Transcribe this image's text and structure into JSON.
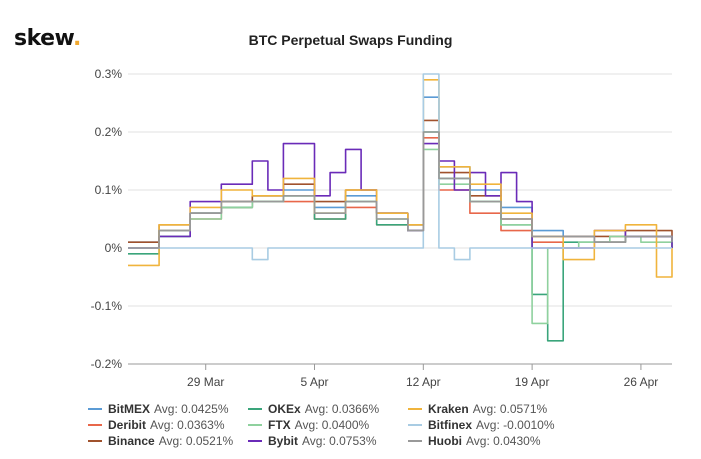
{
  "brand": {
    "name": "skew",
    "dot": "."
  },
  "chart_data": {
    "type": "line",
    "title": "BTC Perpetual Swaps Funding",
    "xlabel": "",
    "ylabel": "",
    "x_start": "2020-03-24",
    "x_end": "2020-04-28",
    "x_ticks": [
      {
        "label": "29 Mar",
        "date": "2020-03-29"
      },
      {
        "label": "5 Apr",
        "date": "2020-04-05"
      },
      {
        "label": "12 Apr",
        "date": "2020-04-12"
      },
      {
        "label": "19 Apr",
        "date": "2020-04-19"
      },
      {
        "label": "26 Apr",
        "date": "2020-04-26"
      }
    ],
    "ylim": [
      -0.2,
      0.3
    ],
    "y_ticks": [
      {
        "label": "0.3%",
        "value": 0.3
      },
      {
        "label": "0.2%",
        "value": 0.2
      },
      {
        "label": "0.1%",
        "value": 0.1
      },
      {
        "label": "0%",
        "value": 0
      },
      {
        "label": "-0.1%",
        "value": -0.1
      },
      {
        "label": "-0.2%",
        "value": -0.2
      }
    ],
    "grid": true,
    "legend_position": "bottom",
    "series": [
      {
        "name": "BitMEX",
        "avg_label": "Avg: 0.0425%",
        "color": "#5b9bd5",
        "points": [
          [
            "2020-03-24",
            0.01
          ],
          [
            "2020-03-26",
            0.03
          ],
          [
            "2020-03-28",
            0.06
          ],
          [
            "2020-03-30",
            0.08
          ],
          [
            "2020-04-01",
            0.09
          ],
          [
            "2020-04-03",
            0.1
          ],
          [
            "2020-04-05",
            0.07
          ],
          [
            "2020-04-07",
            0.09
          ],
          [
            "2020-04-09",
            0.06
          ],
          [
            "2020-04-11",
            0.04
          ],
          [
            "2020-04-12",
            0.26
          ],
          [
            "2020-04-13",
            0.14
          ],
          [
            "2020-04-15",
            0.1
          ],
          [
            "2020-04-17",
            0.07
          ],
          [
            "2020-04-19",
            0.03
          ],
          [
            "2020-04-21",
            0.02
          ],
          [
            "2020-04-23",
            0.01
          ],
          [
            "2020-04-25",
            0.02
          ],
          [
            "2020-04-28",
            0.01
          ]
        ]
      },
      {
        "name": "Deribit",
        "avg_label": "Avg: 0.0363%",
        "color": "#e8674a",
        "points": [
          [
            "2020-03-24",
            0.0
          ],
          [
            "2020-03-26",
            0.03
          ],
          [
            "2020-03-28",
            0.05
          ],
          [
            "2020-03-30",
            0.07
          ],
          [
            "2020-04-01",
            0.08
          ],
          [
            "2020-04-03",
            0.08
          ],
          [
            "2020-04-05",
            0.05
          ],
          [
            "2020-04-07",
            0.07
          ],
          [
            "2020-04-09",
            0.04
          ],
          [
            "2020-04-11",
            0.03
          ],
          [
            "2020-04-12",
            0.19
          ],
          [
            "2020-04-13",
            0.1
          ],
          [
            "2020-04-15",
            0.06
          ],
          [
            "2020-04-17",
            0.03
          ],
          [
            "2020-04-19",
            0.01
          ],
          [
            "2020-04-21",
            0.0
          ],
          [
            "2020-04-23",
            0.01
          ],
          [
            "2020-04-25",
            0.02
          ],
          [
            "2020-04-28",
            0.0
          ]
        ]
      },
      {
        "name": "Binance",
        "avg_label": "Avg: 0.0521%",
        "color": "#a0522d",
        "points": [
          [
            "2020-03-24",
            0.01
          ],
          [
            "2020-03-26",
            0.04
          ],
          [
            "2020-03-28",
            0.06
          ],
          [
            "2020-03-30",
            0.08
          ],
          [
            "2020-04-01",
            0.09
          ],
          [
            "2020-04-03",
            0.11
          ],
          [
            "2020-04-05",
            0.08
          ],
          [
            "2020-04-07",
            0.1
          ],
          [
            "2020-04-09",
            0.06
          ],
          [
            "2020-04-11",
            0.04
          ],
          [
            "2020-04-12",
            0.22
          ],
          [
            "2020-04-13",
            0.13
          ],
          [
            "2020-04-15",
            0.09
          ],
          [
            "2020-04-17",
            0.05
          ],
          [
            "2020-04-19",
            0.02
          ],
          [
            "2020-04-21",
            0.02
          ],
          [
            "2020-04-23",
            0.02
          ],
          [
            "2020-04-25",
            0.03
          ],
          [
            "2020-04-28",
            0.01
          ]
        ]
      },
      {
        "name": "OKEx",
        "avg_label": "Avg: 0.0366%",
        "color": "#3aa57b",
        "points": [
          [
            "2020-03-24",
            -0.01
          ],
          [
            "2020-03-26",
            0.02
          ],
          [
            "2020-03-28",
            0.06
          ],
          [
            "2020-03-30",
            0.07
          ],
          [
            "2020-04-01",
            0.08
          ],
          [
            "2020-04-03",
            0.09
          ],
          [
            "2020-04-05",
            0.05
          ],
          [
            "2020-04-07",
            0.08
          ],
          [
            "2020-04-09",
            0.04
          ],
          [
            "2020-04-11",
            0.03
          ],
          [
            "2020-04-12",
            0.2
          ],
          [
            "2020-04-13",
            0.12
          ],
          [
            "2020-04-15",
            0.08
          ],
          [
            "2020-04-17",
            0.04
          ],
          [
            "2020-04-19",
            -0.08
          ],
          [
            "2020-04-20",
            -0.16
          ],
          [
            "2020-04-21",
            0.01
          ],
          [
            "2020-04-23",
            0.01
          ],
          [
            "2020-04-25",
            0.02
          ],
          [
            "2020-04-28",
            0.0
          ]
        ]
      },
      {
        "name": "FTX",
        "avg_label": "Avg: 0.0400%",
        "color": "#8fd19e",
        "points": [
          [
            "2020-03-24",
            0.0
          ],
          [
            "2020-03-26",
            0.03
          ],
          [
            "2020-03-28",
            0.05
          ],
          [
            "2020-03-30",
            0.07
          ],
          [
            "2020-04-01",
            0.08
          ],
          [
            "2020-04-03",
            0.09
          ],
          [
            "2020-04-05",
            0.06
          ],
          [
            "2020-04-07",
            0.08
          ],
          [
            "2020-04-09",
            0.05
          ],
          [
            "2020-04-11",
            0.03
          ],
          [
            "2020-04-12",
            0.17
          ],
          [
            "2020-04-13",
            0.11
          ],
          [
            "2020-04-15",
            0.08
          ],
          [
            "2020-04-17",
            0.04
          ],
          [
            "2020-04-19",
            -0.13
          ],
          [
            "2020-04-20",
            0.0
          ],
          [
            "2020-04-22",
            0.01
          ],
          [
            "2020-04-24",
            0.02
          ],
          [
            "2020-04-26",
            0.01
          ],
          [
            "2020-04-28",
            0.0
          ]
        ]
      },
      {
        "name": "Bybit",
        "avg_label": "Avg: 0.0753%",
        "color": "#6a2bb8",
        "points": [
          [
            "2020-03-24",
            0.0
          ],
          [
            "2020-03-26",
            0.02
          ],
          [
            "2020-03-28",
            0.08
          ],
          [
            "2020-03-30",
            0.11
          ],
          [
            "2020-04-01",
            0.15
          ],
          [
            "2020-04-02",
            0.1
          ],
          [
            "2020-04-03",
            0.18
          ],
          [
            "2020-04-05",
            0.09
          ],
          [
            "2020-04-06",
            0.13
          ],
          [
            "2020-04-07",
            0.17
          ],
          [
            "2020-04-08",
            0.1
          ],
          [
            "2020-04-09",
            0.06
          ],
          [
            "2020-04-11",
            0.03
          ],
          [
            "2020-04-12",
            0.18
          ],
          [
            "2020-04-13",
            0.15
          ],
          [
            "2020-04-14",
            0.1
          ],
          [
            "2020-04-15",
            0.13
          ],
          [
            "2020-04-16",
            0.09
          ],
          [
            "2020-04-17",
            0.13
          ],
          [
            "2020-04-18",
            0.08
          ],
          [
            "2020-04-19",
            0.0
          ],
          [
            "2020-04-21",
            0.0
          ],
          [
            "2020-04-23",
            0.03
          ],
          [
            "2020-04-25",
            0.02
          ],
          [
            "2020-04-28",
            0.0
          ]
        ]
      },
      {
        "name": "Kraken",
        "avg_label": "Avg: 0.0571%",
        "color": "#f0b43c",
        "points": [
          [
            "2020-03-24",
            -0.03
          ],
          [
            "2020-03-26",
            0.04
          ],
          [
            "2020-03-28",
            0.07
          ],
          [
            "2020-03-30",
            0.1
          ],
          [
            "2020-04-01",
            0.09
          ],
          [
            "2020-04-03",
            0.12
          ],
          [
            "2020-04-05",
            0.06
          ],
          [
            "2020-04-07",
            0.1
          ],
          [
            "2020-04-09",
            0.06
          ],
          [
            "2020-04-11",
            0.04
          ],
          [
            "2020-04-12",
            0.29
          ],
          [
            "2020-04-13",
            0.14
          ],
          [
            "2020-04-15",
            0.11
          ],
          [
            "2020-04-17",
            0.06
          ],
          [
            "2020-04-19",
            0.02
          ],
          [
            "2020-04-21",
            -0.02
          ],
          [
            "2020-04-23",
            0.03
          ],
          [
            "2020-04-25",
            0.04
          ],
          [
            "2020-04-27",
            -0.05
          ],
          [
            "2020-04-28",
            0.0
          ]
        ]
      },
      {
        "name": "Bitfinex",
        "avg_label": "Avg: -0.0010%",
        "color": "#a9cce3",
        "points": [
          [
            "2020-03-24",
            0.0
          ],
          [
            "2020-03-30",
            0.0
          ],
          [
            "2020-04-01",
            -0.02
          ],
          [
            "2020-04-02",
            0.0
          ],
          [
            "2020-04-11",
            0.0
          ],
          [
            "2020-04-12",
            0.3
          ],
          [
            "2020-04-13",
            0.0
          ],
          [
            "2020-04-14",
            -0.02
          ],
          [
            "2020-04-15",
            0.0
          ],
          [
            "2020-04-19",
            0.0
          ],
          [
            "2020-04-28",
            0.0
          ]
        ]
      },
      {
        "name": "Huobi",
        "avg_label": "Avg: 0.0430%",
        "color": "#999999",
        "points": [
          [
            "2020-03-24",
            0.0
          ],
          [
            "2020-03-26",
            0.03
          ],
          [
            "2020-03-28",
            0.06
          ],
          [
            "2020-03-30",
            0.08
          ],
          [
            "2020-04-01",
            0.08
          ],
          [
            "2020-04-03",
            0.09
          ],
          [
            "2020-04-05",
            0.06
          ],
          [
            "2020-04-07",
            0.08
          ],
          [
            "2020-04-09",
            0.05
          ],
          [
            "2020-04-11",
            0.03
          ],
          [
            "2020-04-12",
            0.2
          ],
          [
            "2020-04-13",
            0.12
          ],
          [
            "2020-04-15",
            0.08
          ],
          [
            "2020-04-17",
            0.05
          ],
          [
            "2020-04-19",
            0.02
          ],
          [
            "2020-04-21",
            0.02
          ],
          [
            "2020-04-23",
            0.01
          ],
          [
            "2020-04-25",
            0.02
          ],
          [
            "2020-04-28",
            0.01
          ]
        ]
      }
    ]
  }
}
